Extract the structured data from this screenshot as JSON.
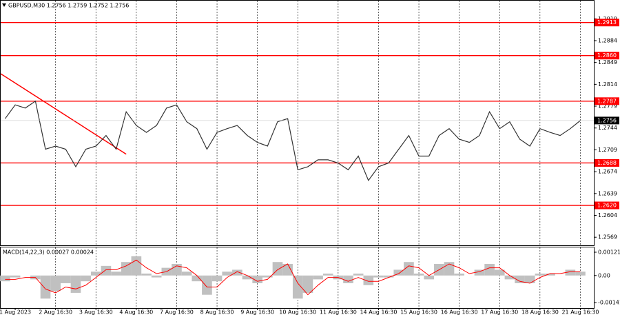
{
  "chart_data": [
    {
      "type": "line",
      "title": "GBPUSD,M30  1.2756 1.2759 1.2752 1.2756",
      "categories": [
        null,
        "1 Aug 2023",
        null,
        null,
        null,
        "2 Aug 16:30",
        null,
        null,
        null,
        "3 Aug 16:30",
        null,
        null,
        null,
        "4 Aug 16:30",
        null,
        null,
        null,
        "7 Aug 16:30",
        null,
        null,
        null,
        "8 Aug 16:30",
        null,
        null,
        null,
        "9 Aug 16:30",
        null,
        null,
        null,
        "10 Aug 16:30",
        null,
        null,
        null,
        "11 Aug 16:30",
        null,
        null,
        null,
        "14 Aug 16:30",
        null,
        null,
        null,
        "15 Aug 16:30",
        null,
        null,
        null,
        "16 Aug 16:30",
        null,
        null,
        null,
        "17 Aug 16:30",
        null,
        null,
        null,
        "18 Aug 16:30",
        null,
        null,
        null,
        "21 Aug 16:30",
        null
      ],
      "series": [
        {
          "color": "#333333",
          "values": [
            1.2759,
            1.2781,
            1.2776,
            1.2787,
            1.271,
            1.2715,
            1.271,
            1.2682,
            1.271,
            1.2715,
            1.2732,
            1.271,
            1.277,
            1.2748,
            1.2737,
            1.2748,
            1.2776,
            1.2781,
            1.2754,
            1.2743,
            1.271,
            1.2737,
            1.2743,
            1.2748,
            1.2732,
            1.2721,
            1.2715,
            1.2754,
            1.2759,
            1.2677,
            1.2682,
            1.2693,
            1.2693,
            1.2688,
            1.2677,
            1.2699,
            1.266,
            1.2682,
            1.2688,
            1.271,
            1.2732,
            1.2699,
            1.2699,
            1.2732,
            1.2743,
            1.2726,
            1.2721,
            1.2732,
            1.277,
            1.2743,
            1.2754,
            1.2726,
            1.2715,
            1.2743,
            1.2737,
            1.2732,
            1.2743,
            1.2756,
            null
          ]
        }
      ],
      "levels": [
        1.2913,
        {
          "value": 1.286,
          "label": "1.2860"
        },
        1.2787,
        1.2688,
        {
          "value": 1.262,
          "label": "1.2620"
        }
      ],
      "level_color": "#ff0000",
      "last_price": 1.2756,
      "trendline": [
        1.2831,
        1.2702
      ],
      "ylim": [
        1.2556,
        1.2948
      ],
      "yticks": [
        1.2919,
        1.2884,
        1.2849,
        1.2814,
        1.2779,
        1.2744,
        1.2709,
        1.2674,
        1.2639,
        1.2604,
        1.2569
      ],
      "grid": "x"
    },
    {
      "type": "bar",
      "title": "MACD(14,22,3) 0.00027 0.00024",
      "series": [
        {
          "color": "#c0c0c0",
          "values": [
            -0.0003,
            -0.0001,
            0.0,
            -0.0002,
            -0.0012,
            -0.0008,
            -0.0004,
            -0.0009,
            -0.0003,
            0.0002,
            0.0005,
            0.0002,
            0.0007,
            0.001,
            0.0001,
            -0.0001,
            0.0004,
            0.0006,
            0.0002,
            -0.0003,
            -0.001,
            -0.0003,
            0.0002,
            0.0003,
            -0.0002,
            -0.0004,
            -0.0001,
            0.0007,
            0.0006,
            -0.0012,
            -0.0009,
            -0.0002,
            0.0001,
            -0.0002,
            -0.0004,
            0.0001,
            -0.0005,
            -0.0001,
            -0.0001,
            0.0003,
            0.0007,
            0.0001,
            -0.0002,
            0.0006,
            0.0007,
            0.0001,
            0.0,
            0.0003,
            0.0006,
            0.0003,
            -0.0002,
            -0.0004,
            -0.0004,
            0.0001,
            0.0001,
            0.0,
            0.0003,
            0.0002,
            null
          ]
        },
        {
          "color": "#ff0000",
          "values": [
            -0.0002,
            -0.0002,
            -0.0001,
            -0.0001,
            -0.0007,
            -0.0009,
            -0.0006,
            -0.0007,
            -0.0005,
            -0.0001,
            0.0003,
            0.0003,
            0.0005,
            0.0008,
            0.0004,
            0.0001,
            0.0002,
            0.0005,
            0.0004,
            0.0,
            -0.0006,
            -0.0006,
            -0.0001,
            0.0002,
            0.0,
            -0.0003,
            -0.0002,
            0.0003,
            0.0006,
            -0.0004,
            -0.001,
            -0.0005,
            -0.0001,
            -0.0001,
            -0.0003,
            -0.0001,
            -0.0003,
            -0.0003,
            -0.0001,
            0.0001,
            0.0005,
            0.0004,
            0.0,
            0.0003,
            0.0006,
            0.0004,
            0.0001,
            0.0002,
            0.0004,
            0.0004,
            0.0,
            -0.0003,
            -0.0004,
            -0.0001,
            0.0001,
            0.0001,
            0.0002,
            0.0002,
            null
          ]
        }
      ],
      "ylim": [
        -0.00169,
        0.00146
      ],
      "yticks": [
        0.00121,
        {
          "value": 0,
          "label": "0.00"
        },
        -0.00141
      ]
    }
  ]
}
